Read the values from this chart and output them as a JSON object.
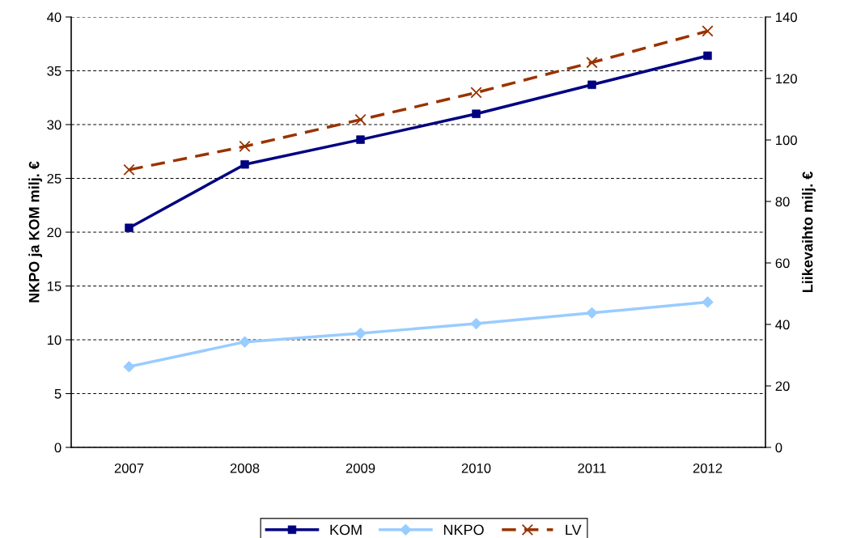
{
  "chart_data": {
    "type": "line",
    "categories": [
      "2007",
      "2008",
      "2009",
      "2010",
      "2011",
      "2012"
    ],
    "ylabel": "NKPO ja KOM milj. €",
    "y2label": "Liikevaihto milj. €",
    "ylim": [
      0,
      40
    ],
    "yticks": [
      0,
      5,
      10,
      15,
      20,
      25,
      30,
      35,
      40
    ],
    "y2lim": [
      0,
      140
    ],
    "y2ticks": [
      0,
      20,
      40,
      60,
      80,
      100,
      120,
      140
    ],
    "grid": "y",
    "legend": "bottom",
    "series": [
      {
        "name": "KOM",
        "color": "#000080",
        "marker": "square",
        "line_style": "solid",
        "values": [
          20.4,
          26.3,
          28.6,
          31.0,
          33.7,
          36.4
        ]
      },
      {
        "name": "NKPO",
        "color": "#99ccff",
        "marker": "diamond",
        "line_style": "solid",
        "values": [
          7.5,
          9.8,
          10.6,
          11.5,
          12.5,
          13.5
        ]
      },
      {
        "name": "LV",
        "color": "#993300",
        "marker": "cross",
        "line_style": "dashed",
        "axis": "y2",
        "values": [
          90.3,
          97.9,
          106.6,
          115.4,
          125.2,
          135.4
        ]
      }
    ]
  }
}
